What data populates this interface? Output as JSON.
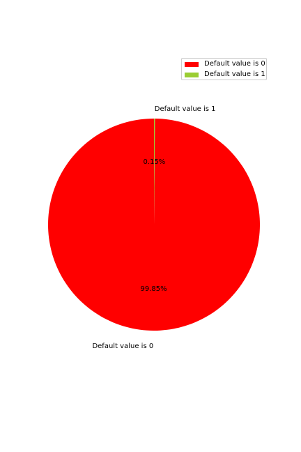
{
  "chart_data": {
    "type": "pie",
    "title": "",
    "slices": [
      {
        "label": "Default value is 0",
        "pct_label": "99.85%",
        "value": 99.85,
        "color": "#ff0000"
      },
      {
        "label": "Default value is 1",
        "pct_label": "0.15%",
        "value": 0.15,
        "color": "#9acd32"
      }
    ],
    "legend": {
      "placement": "top-right",
      "entries": [
        "Default value is 0",
        "Default value is 1"
      ]
    },
    "start_angle_deg": 90,
    "direction": "clockwise"
  }
}
